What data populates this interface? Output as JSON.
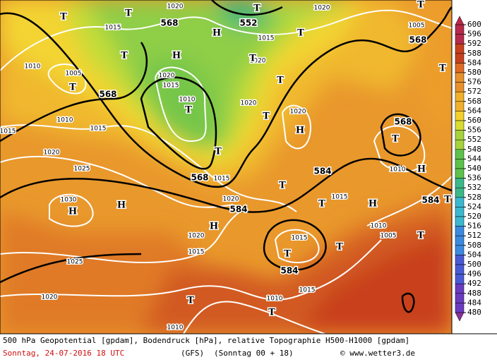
{
  "map": {
    "labels": [
      "568",
      "552",
      "568",
      "568",
      "568",
      "568",
      "584",
      "584",
      "584",
      "584",
      "1020",
      "1015",
      "1015",
      "1020",
      "1005",
      "1010",
      "1005",
      "1020",
      "1015",
      "1010",
      "1020",
      "1020",
      "1020",
      "1010",
      "1015",
      "1015",
      "1020",
      "1025",
      "1030",
      "1015",
      "1020",
      "1015",
      "1010",
      "1020",
      "1015",
      "1015",
      "1010",
      "1005",
      "1025",
      "1020",
      "1015",
      "1010",
      "1010",
      "T",
      "T",
      "T",
      "T",
      "H",
      "T",
      "T",
      "H",
      "T",
      "T",
      "T",
      "T",
      "T",
      "T",
      "H",
      "T",
      "T",
      "H",
      "T",
      "H",
      "T",
      "H",
      "H",
      "H",
      "T",
      "T",
      "T",
      "T",
      "T",
      "T"
    ]
  },
  "colorbar": {
    "ticks": [
      600,
      596,
      592,
      588,
      584,
      580,
      576,
      572,
      568,
      564,
      560,
      556,
      552,
      548,
      544,
      540,
      536,
      532,
      528,
      524,
      520,
      516,
      512,
      508,
      504,
      500,
      496,
      492,
      488,
      484,
      480
    ]
  },
  "footer": {
    "description": "500 hPa Geopotential [gpdam], Bodendruck [hPa], relative Topographie H500-H1000 [gpdam]",
    "date": "Sonntag, 24-07-2016  18 UTC",
    "model": "(GFS)",
    "run": "(Sonntag 00 + 18)",
    "credit": "© www.wetter3.de"
  }
}
